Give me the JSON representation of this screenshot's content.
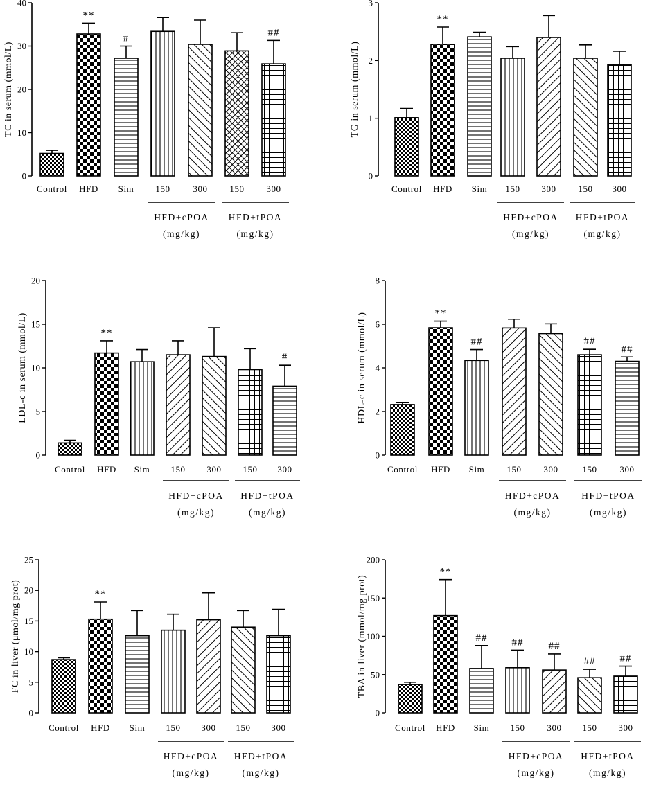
{
  "figure": {
    "colors": {
      "ink": "#000000",
      "background": "#ffffff"
    }
  },
  "chart_data": [
    {
      "id": "tc",
      "type": "bar",
      "ylabel": "TC in serum (mmol/L)",
      "ylim": [
        0,
        40
      ],
      "yticks": [
        0,
        10,
        20,
        30,
        40
      ],
      "categories": [
        "Control",
        "HFD",
        "Sim",
        "150",
        "300",
        "150",
        "300"
      ],
      "values": [
        5.2,
        32.8,
        27.2,
        33.4,
        30.4,
        28.9,
        25.9
      ],
      "errors": [
        0.7,
        2.5,
        2.8,
        3.2,
        5.6,
        4.2,
        5.4
      ],
      "patterns": [
        "fine-check",
        "big-check",
        "hlines",
        "vlines",
        "diag-back",
        "grid-diag",
        "grid"
      ],
      "annotations": [
        "",
        "**",
        "#",
        "",
        "",
        "",
        "##"
      ],
      "groups": [
        {
          "label": "HFD+cPOA",
          "unit": "(mg/kg)"
        },
        {
          "label": "HFD+tPOA",
          "unit": "(mg/kg)"
        }
      ]
    },
    {
      "id": "tg",
      "type": "bar",
      "ylabel": "TG in serum (mmol/L)",
      "ylim": [
        0,
        3
      ],
      "yticks": [
        0,
        1,
        2,
        3
      ],
      "categories": [
        "Control",
        "HFD",
        "Sim",
        "150",
        "300",
        "150",
        "300"
      ],
      "values": [
        1.01,
        2.28,
        2.41,
        2.04,
        2.4,
        2.04,
        1.93
      ],
      "errors": [
        0.16,
        0.3,
        0.08,
        0.2,
        0.38,
        0.23,
        0.23
      ],
      "patterns": [
        "fine-check",
        "big-check",
        "hlines",
        "vlines",
        "diag-fwd",
        "diag-back",
        "grid"
      ],
      "annotations": [
        "",
        "**",
        "",
        "",
        "",
        "",
        ""
      ],
      "groups": [
        {
          "label": "HFD+cPOA",
          "unit": "(mg/kg)"
        },
        {
          "label": "HFD+tPOA",
          "unit": "(mg/kg)"
        }
      ]
    },
    {
      "id": "ldl",
      "type": "bar",
      "ylabel": "LDL-c in serum (mmol/L)",
      "ylim": [
        0,
        20
      ],
      "yticks": [
        0,
        5,
        10,
        15,
        20
      ],
      "categories": [
        "Control",
        "HFD",
        "Sim",
        "150",
        "300",
        "150",
        "300"
      ],
      "values": [
        1.4,
        11.7,
        10.7,
        11.5,
        11.3,
        9.8,
        7.9
      ],
      "errors": [
        0.3,
        1.4,
        1.4,
        1.6,
        3.3,
        2.4,
        2.4
      ],
      "patterns": [
        "fine-check",
        "big-check",
        "vlines",
        "diag-fwd",
        "diag-back",
        "grid",
        "hlines"
      ],
      "annotations": [
        "",
        "**",
        "",
        "",
        "",
        "",
        "#"
      ],
      "groups": [
        {
          "label": "HFD+cPOA",
          "unit": "(mg/kg)"
        },
        {
          "label": "HFD+tPOA",
          "unit": "(mg/kg)"
        }
      ]
    },
    {
      "id": "hdl",
      "type": "bar",
      "ylabel": "HDL-c in serum (mmol/L)",
      "ylim": [
        0,
        8
      ],
      "yticks": [
        0,
        2,
        4,
        6,
        8
      ],
      "categories": [
        "Control",
        "HFD",
        "Sim",
        "150",
        "300",
        "150",
        "300"
      ],
      "values": [
        2.32,
        5.84,
        4.34,
        5.83,
        5.57,
        4.6,
        4.3
      ],
      "errors": [
        0.1,
        0.3,
        0.5,
        0.4,
        0.45,
        0.25,
        0.2
      ],
      "patterns": [
        "fine-check",
        "big-check",
        "vlines",
        "diag-fwd",
        "diag-back",
        "grid",
        "hlines"
      ],
      "annotations": [
        "",
        "**",
        "##",
        "",
        "",
        "##",
        "##"
      ],
      "groups": [
        {
          "label": "HFD+cPOA",
          "unit": "(mg/kg)"
        },
        {
          "label": "HFD+tPOA",
          "unit": "(mg/kg)"
        }
      ]
    },
    {
      "id": "fc",
      "type": "bar",
      "ylabel": "FC in liver (μmol/mg prot)",
      "ylim": [
        0,
        25
      ],
      "yticks": [
        0,
        5,
        10,
        15,
        20,
        25
      ],
      "categories": [
        "Control",
        "HFD",
        "Sim",
        "150",
        "300",
        "150",
        "300"
      ],
      "values": [
        8.7,
        15.3,
        12.6,
        13.5,
        15.2,
        14.0,
        12.6
      ],
      "errors": [
        0.3,
        2.8,
        4.1,
        2.6,
        4.4,
        2.7,
        4.3
      ],
      "patterns": [
        "fine-check",
        "big-check",
        "hlines",
        "vlines",
        "diag-fwd",
        "diag-back",
        "grid"
      ],
      "annotations": [
        "",
        "**",
        "",
        "",
        "",
        "",
        ""
      ],
      "groups": [
        {
          "label": "HFD+cPOA",
          "unit": "(mg/kg)"
        },
        {
          "label": "HFD+tPOA",
          "unit": "(mg/kg)"
        }
      ]
    },
    {
      "id": "tba",
      "type": "bar",
      "ylabel": "TBA in liver (mmol/mg prot)",
      "ylim": [
        0,
        200
      ],
      "yticks": [
        0,
        50,
        100,
        150,
        200
      ],
      "categories": [
        "Control",
        "HFD",
        "Sim",
        "150",
        "300",
        "150",
        "300"
      ],
      "values": [
        37,
        127,
        58,
        59,
        56,
        46,
        48
      ],
      "errors": [
        3,
        47,
        30,
        23,
        21,
        11,
        13
      ],
      "patterns": [
        "fine-check",
        "big-check",
        "hlines",
        "vlines",
        "diag-fwd",
        "diag-back",
        "grid"
      ],
      "annotations": [
        "",
        "**",
        "##",
        "##",
        "##",
        "##",
        "##"
      ],
      "groups": [
        {
          "label": "HFD+cPOA",
          "unit": "(mg/kg)"
        },
        {
          "label": "HFD+tPOA",
          "unit": "(mg/kg)"
        }
      ]
    }
  ]
}
